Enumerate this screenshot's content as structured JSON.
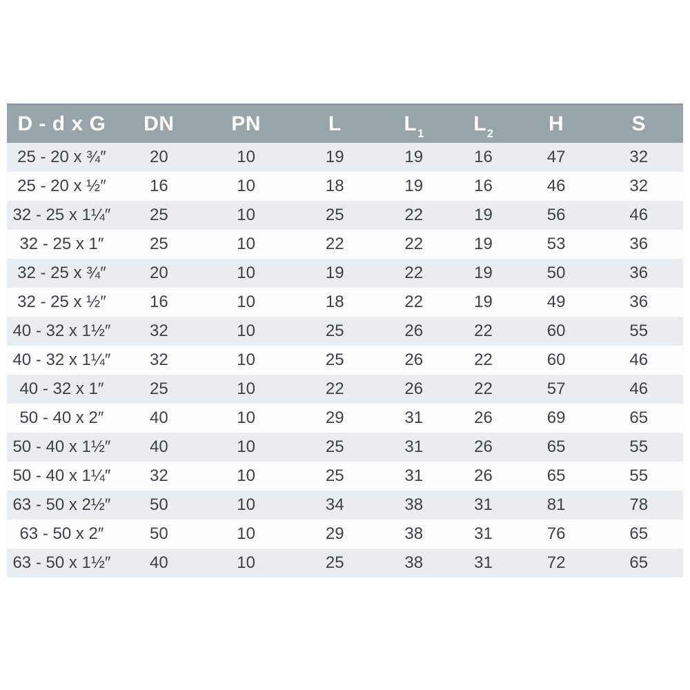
{
  "chart_data": {
    "type": "table",
    "title": "",
    "columns": [
      {
        "id": "d-dxg",
        "label": "D - d x G",
        "sub": ""
      },
      {
        "id": "dn",
        "label": "DN",
        "sub": ""
      },
      {
        "id": "pn",
        "label": "PN",
        "sub": ""
      },
      {
        "id": "l",
        "label": "L",
        "sub": ""
      },
      {
        "id": "l1",
        "label": "L",
        "sub": "1"
      },
      {
        "id": "l2",
        "label": "L",
        "sub": "2"
      },
      {
        "id": "h",
        "label": "H",
        "sub": ""
      },
      {
        "id": "s",
        "label": "S",
        "sub": ""
      }
    ],
    "rows": [
      [
        "25 - 20 x ¾″",
        "20",
        "10",
        "19",
        "19",
        "16",
        "47",
        "32"
      ],
      [
        "25 - 20 x ½″",
        "16",
        "10",
        "18",
        "19",
        "16",
        "46",
        "32"
      ],
      [
        "32 - 25 x 1¼″",
        "25",
        "10",
        "25",
        "22",
        "19",
        "56",
        "46"
      ],
      [
        "32 - 25 x 1″",
        "25",
        "10",
        "22",
        "22",
        "19",
        "53",
        "36"
      ],
      [
        "32 - 25 x ¾″",
        "20",
        "10",
        "19",
        "22",
        "19",
        "50",
        "36"
      ],
      [
        "32 - 25 x ½″",
        "16",
        "10",
        "18",
        "22",
        "19",
        "49",
        "36"
      ],
      [
        "40 - 32 x 1½″",
        "32",
        "10",
        "25",
        "26",
        "22",
        "60",
        "55"
      ],
      [
        "40 - 32 x 1¼″",
        "32",
        "10",
        "25",
        "26",
        "22",
        "60",
        "46"
      ],
      [
        "40 - 32 x 1″",
        "25",
        "10",
        "22",
        "26",
        "22",
        "57",
        "46"
      ],
      [
        "50 - 40 x 2″",
        "40",
        "10",
        "29",
        "31",
        "26",
        "69",
        "65"
      ],
      [
        "50 - 40 x 1½″",
        "40",
        "10",
        "25",
        "31",
        "26",
        "65",
        "55"
      ],
      [
        "50 - 40 x 1¼″",
        "32",
        "10",
        "25",
        "31",
        "26",
        "65",
        "55"
      ],
      [
        "63 - 50 x 2½″",
        "50",
        "10",
        "34",
        "38",
        "31",
        "81",
        "78"
      ],
      [
        "63 - 50 x 2″",
        "50",
        "10",
        "29",
        "38",
        "31",
        "76",
        "65"
      ],
      [
        "63 - 50 x 1½″",
        "40",
        "10",
        "25",
        "38",
        "31",
        "72",
        "65"
      ]
    ],
    "colors": {
      "page_bg": "#ffffff",
      "header_bg": "#99a3aa",
      "header_top_edge": "#8b959d",
      "header_text": "#ffffff",
      "row_alt_bg": "#e9edf0",
      "row_bg": "#fdfdfd",
      "cell_text": "#3c4146"
    }
  }
}
